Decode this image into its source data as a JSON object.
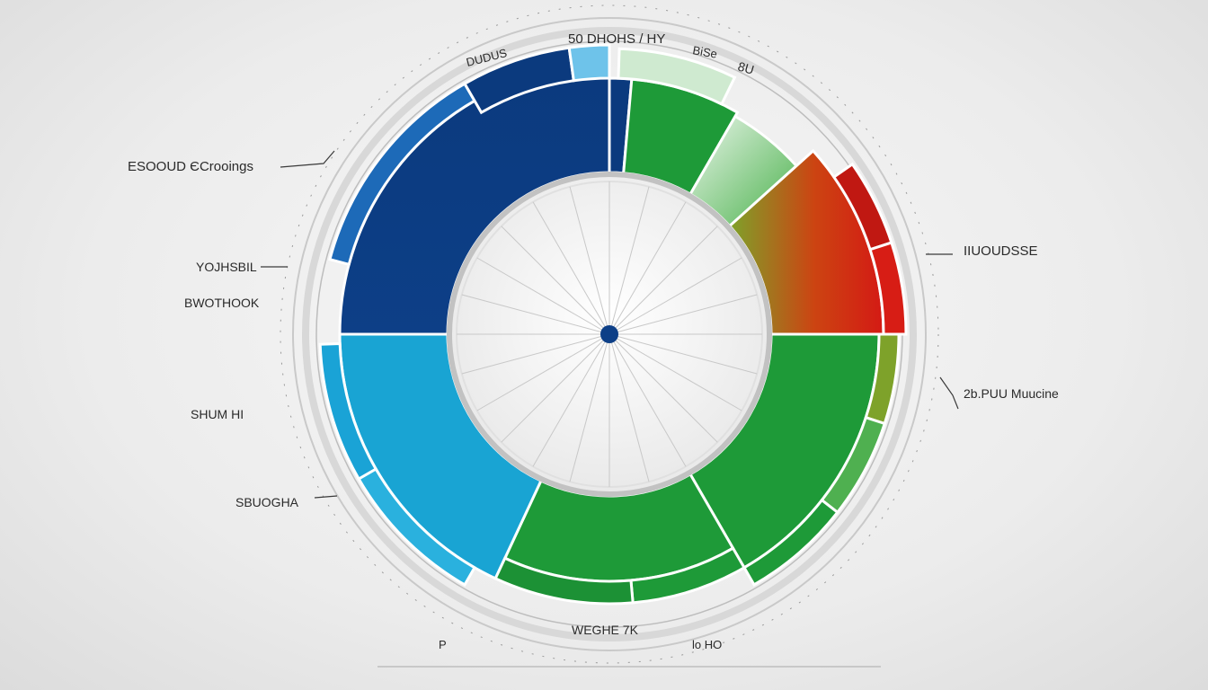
{
  "chart_data": {
    "type": "pie",
    "title": "",
    "colors": {
      "navy": "#0b3a7e",
      "mid_blue": "#1d6ab8",
      "cyan": "#19a4d3",
      "green": "#1e9a38",
      "light_green": "#8fce86",
      "red": "#d41a14",
      "olive": "#7ea22a"
    },
    "slices": [
      {
        "name": "navy-inner",
        "start": 270,
        "end": 360,
        "ring": "inner",
        "color": "#0b3a7e"
      },
      {
        "name": "cyan-inner",
        "start": 180,
        "end": 270,
        "ring": "inner",
        "color": "#15a0d2"
      },
      {
        "name": "green-inner",
        "start": 70,
        "end": 180,
        "ring": "inner",
        "color": "#1e9a38"
      },
      {
        "name": "red-inner",
        "start": 30,
        "end": 90,
        "ring": "inner",
        "color": "#d41a14"
      },
      {
        "name": "lightgreen-inner",
        "start": 0,
        "end": 30,
        "ring": "inner",
        "color": "#35a83a"
      }
    ],
    "labels": [
      {
        "text": "50 DHOHS / HY",
        "side": "top"
      },
      {
        "text": "DUDUS",
        "side": "top"
      },
      {
        "text": "ESOOUD ЄCrooings",
        "side": "left"
      },
      {
        "text": "YOJHSBIL",
        "side": "left"
      },
      {
        "text": "BWOTHOOK",
        "side": "left"
      },
      {
        "text": "SHUM HI",
        "side": "left"
      },
      {
        "text": "SBUOGHA",
        "side": "left"
      },
      {
        "text": "IIUOUDSSE",
        "side": "right"
      },
      {
        "text": "2b.PUU Muucine",
        "side": "right"
      },
      {
        "text": "WEGHE 7K",
        "side": "bottom"
      }
    ]
  },
  "annotations": {
    "top_a": "50 DHOHS / HY",
    "top_b": "DUDUS",
    "top_c": "BiSe",
    "top_d": "8U",
    "left_1": "ESOOUD ЄCrooings",
    "left_2": "YOJHSBIL",
    "left_3": "BWOTHOOK",
    "left_4": "SHUM HI",
    "left_5": "SBUOGHA",
    "right_1": "IIUOUDSSE",
    "right_2": "2b.PUU Muucine",
    "bottom_1": "WEGHE 7K",
    "bottom_2": "lo HO",
    "bottom_3": "P"
  }
}
